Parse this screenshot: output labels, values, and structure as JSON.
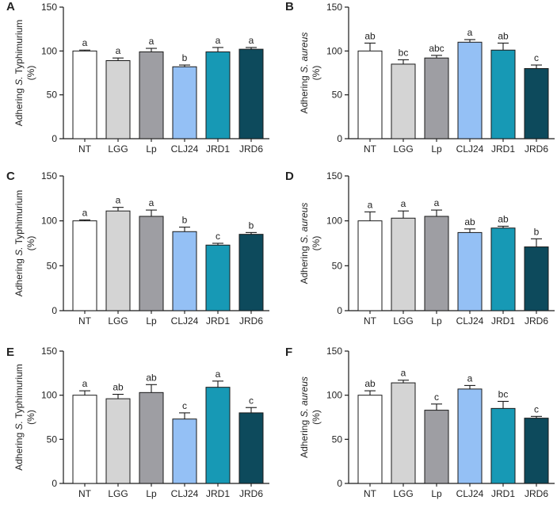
{
  "figure": {
    "type": "multi-panel bar chart"
  },
  "chart_data": [
    {
      "panel": "A",
      "type": "bar",
      "ylabel_prefix": "Adhering ",
      "ylabel_species": "S.",
      "ylabel_suffix": " Typhimurium",
      "ylabel_unit": "(%)",
      "categories": [
        "NT",
        "LGG",
        "Lp",
        "CLJ24",
        "JRD1",
        "JRD6"
      ],
      "values": [
        100,
        89,
        99,
        82,
        99,
        102
      ],
      "errors": [
        1,
        3,
        4,
        2,
        5,
        2
      ],
      "significance": [
        "a",
        "a",
        "a",
        "b",
        "a",
        "a"
      ],
      "ylim": [
        0,
        150
      ],
      "yticks": [
        0,
        50,
        100,
        150
      ]
    },
    {
      "panel": "B",
      "type": "bar",
      "ylabel_prefix": "Adhering ",
      "ylabel_species": "S. aureus",
      "ylabel_suffix": "",
      "ylabel_unit": "(%)",
      "categories": [
        "NT",
        "LGG",
        "Lp",
        "CLJ24",
        "JRD1",
        "JRD6"
      ],
      "values": [
        100,
        85,
        92,
        110,
        101,
        80
      ],
      "errors": [
        9,
        5,
        3,
        3,
        8,
        4
      ],
      "significance": [
        "ab",
        "bc",
        "abc",
        "a",
        "ab",
        "c"
      ],
      "ylim": [
        0,
        150
      ],
      "yticks": [
        0,
        50,
        100,
        150
      ]
    },
    {
      "panel": "C",
      "type": "bar",
      "ylabel_prefix": "Adhering ",
      "ylabel_species": "S.",
      "ylabel_suffix": " Typhimurium",
      "ylabel_unit": "(%)",
      "categories": [
        "NT",
        "LGG",
        "Lp",
        "CLJ24",
        "JRD1",
        "JRD6"
      ],
      "values": [
        100,
        111,
        105,
        88,
        73,
        85
      ],
      "errors": [
        1,
        4,
        7,
        5,
        2,
        2
      ],
      "significance": [
        "a",
        "a",
        "a",
        "b",
        "c",
        "b"
      ],
      "ylim": [
        0,
        150
      ],
      "yticks": [
        0,
        50,
        100,
        150
      ]
    },
    {
      "panel": "D",
      "type": "bar",
      "ylabel_prefix": "Adhering ",
      "ylabel_species": "S. aureus",
      "ylabel_suffix": "",
      "ylabel_unit": "(%)",
      "categories": [
        "NT",
        "LGG",
        "Lp",
        "CLJ24",
        "JRD1",
        "JRD6"
      ],
      "values": [
        100,
        103,
        105,
        87,
        92,
        71
      ],
      "errors": [
        10,
        8,
        7,
        4,
        2,
        9
      ],
      "significance": [
        "a",
        "a",
        "a",
        "ab",
        "ab",
        "b"
      ],
      "ylim": [
        0,
        150
      ],
      "yticks": [
        0,
        50,
        100,
        150
      ]
    },
    {
      "panel": "E",
      "type": "bar",
      "ylabel_prefix": "Adhering ",
      "ylabel_species": "S.",
      "ylabel_suffix": " Typhimurium",
      "ylabel_unit": "(%)",
      "categories": [
        "NT",
        "LGG",
        "Lp",
        "CLJ24",
        "JRD1",
        "JRD6"
      ],
      "values": [
        100,
        96,
        103,
        73,
        109,
        80
      ],
      "errors": [
        5,
        5,
        9,
        7,
        7,
        6
      ],
      "significance": [
        "a",
        "ab",
        "ab",
        "c",
        "a",
        "c"
      ],
      "ylim": [
        0,
        150
      ],
      "yticks": [
        0,
        50,
        100,
        150
      ]
    },
    {
      "panel": "F",
      "type": "bar",
      "ylabel_prefix": "Adhering ",
      "ylabel_species": "S. aureus",
      "ylabel_suffix": "",
      "ylabel_unit": "(%)",
      "categories": [
        "NT",
        "LGG",
        "Lp",
        "CLJ24",
        "JRD1",
        "JRD6"
      ],
      "values": [
        100,
        114,
        83,
        107,
        85,
        74
      ],
      "errors": [
        5,
        3,
        7,
        4,
        8,
        2
      ],
      "significance": [
        "ab",
        "a",
        "c",
        "a",
        "bc",
        "c"
      ],
      "ylim": [
        0,
        150
      ],
      "yticks": [
        0,
        50,
        100,
        150
      ]
    }
  ],
  "bar_colors": [
    "#ffffff",
    "#d4d4d4",
    "#9e9ea3",
    "#94c0f5",
    "#1799b5",
    "#0d4a5c"
  ],
  "axis_color": "#1a1a1a"
}
